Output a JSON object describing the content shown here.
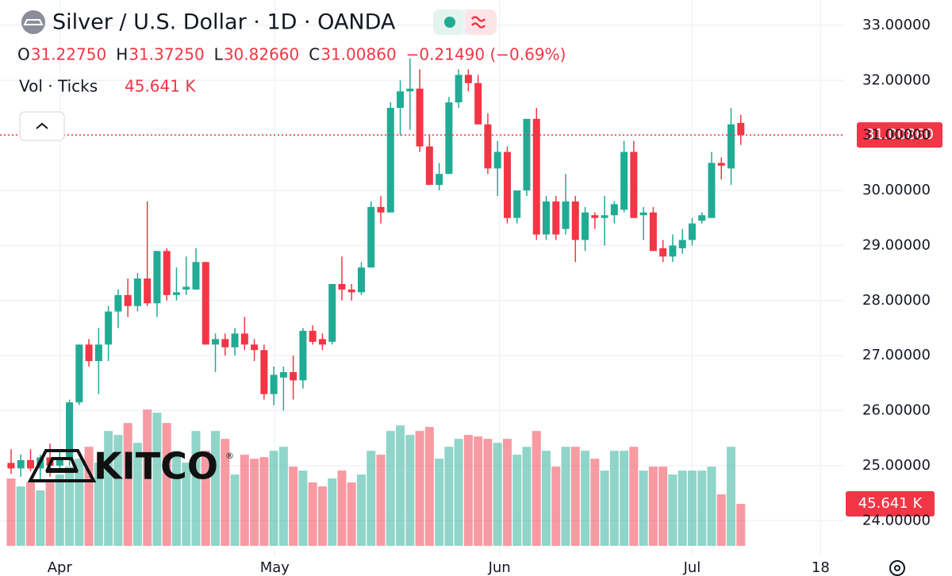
{
  "chart_data": {
    "type": "candlestick",
    "title": "Silver / U.S. Dollar · 1D · OANDA",
    "legend_items": [
      {
        "key": "O",
        "value": "31.22750"
      },
      {
        "key": "H",
        "value": "31.37250"
      },
      {
        "key": "L",
        "value": "30.82660"
      },
      {
        "key": "C",
        "value": "31.00860"
      }
    ],
    "change": "−0.21490 (−0.69%)",
    "volume_title": "Vol · Ticks",
    "volume_label": "45.641 K",
    "close_label": "31.00860",
    "logo": "KITCO",
    "logo_mark": "®",
    "up_color": "#22ab94",
    "down_color": "#f23645",
    "x": [
      0,
      1,
      2,
      3,
      4,
      5,
      6,
      7,
      8,
      9,
      10,
      11,
      12,
      13,
      14,
      15,
      16,
      17,
      18,
      19,
      20,
      21,
      22,
      23,
      24,
      25,
      26,
      27,
      28,
      29,
      30,
      31,
      32,
      33,
      34,
      35,
      36,
      37,
      38,
      39,
      40,
      41,
      42,
      43,
      44,
      45,
      46,
      47,
      48,
      49,
      50,
      51,
      52,
      53,
      54,
      55,
      56,
      57,
      58,
      59,
      60,
      61,
      62,
      63,
      64,
      65,
      66,
      67,
      68,
      69,
      70,
      71,
      72,
      73,
      74,
      75
    ],
    "open": [
      25.05,
      24.95,
      25.1,
      24.95,
      25.15,
      25.0,
      25.1,
      26.15,
      27.2,
      26.9,
      27.2,
      27.8,
      28.1,
      27.9,
      28.4,
      27.95,
      28.9,
      28.1,
      28.2,
      28.2,
      28.7,
      27.2,
      27.3,
      27.15,
      27.4,
      27.2,
      27.1,
      26.3,
      26.6,
      26.7,
      26.55,
      27.45,
      27.3,
      27.25,
      28.3,
      28.2,
      28.15,
      28.6,
      29.7,
      29.6,
      31.5,
      31.8,
      31.85,
      30.8,
      30.1,
      30.3,
      31.6,
      32.1,
      31.95,
      31.2,
      30.4,
      30.7,
      29.5,
      30.0,
      31.3,
      29.2,
      29.8,
      29.3,
      29.8,
      29.1,
      29.55,
      29.5,
      29.55,
      29.65,
      30.7,
      29.55,
      29.6,
      28.95,
      28.8,
      28.95,
      29.1,
      29.45,
      29.5,
      30.5,
      30.4,
      31.2275
    ],
    "high": [
      25.3,
      25.2,
      25.3,
      25.2,
      25.4,
      25.3,
      26.2,
      27.2,
      27.3,
      27.5,
      27.9,
      28.2,
      28.4,
      28.5,
      29.8,
      28.9,
      28.95,
      28.6,
      28.8,
      28.95,
      28.7,
      27.4,
      27.4,
      27.5,
      27.7,
      27.3,
      27.2,
      26.8,
      26.8,
      27.0,
      27.5,
      27.55,
      27.4,
      28.3,
      28.8,
      28.3,
      28.7,
      29.8,
      29.9,
      31.6,
      32.0,
      32.4,
      32.2,
      31.0,
      30.5,
      31.7,
      32.2,
      32.2,
      32.1,
      31.4,
      30.9,
      30.8,
      30.0,
      31.3,
      31.5,
      29.9,
      29.9,
      30.3,
      29.9,
      29.7,
      29.6,
      29.9,
      29.8,
      30.9,
      30.9,
      29.7,
      29.7,
      29.1,
      29.2,
      29.3,
      29.5,
      29.6,
      30.7,
      30.6,
      31.5,
      31.3725
    ],
    "low": [
      24.85,
      24.8,
      24.9,
      24.75,
      24.8,
      24.9,
      25.0,
      26.1,
      26.8,
      26.3,
      26.9,
      27.5,
      27.7,
      27.8,
      27.9,
      27.7,
      28.0,
      28.0,
      28.1,
      28.2,
      27.2,
      26.7,
      27.0,
      27.0,
      27.1,
      26.9,
      26.2,
      26.1,
      26.0,
      26.2,
      26.4,
      27.2,
      27.1,
      27.2,
      28.0,
      28.0,
      28.1,
      28.6,
      29.4,
      29.6,
      31.0,
      31.1,
      30.7,
      30.1,
      30.0,
      30.3,
      31.5,
      31.8,
      31.2,
      30.3,
      29.9,
      29.4,
      29.4,
      29.9,
      29.1,
      29.1,
      29.1,
      29.2,
      28.7,
      28.9,
      29.3,
      29.0,
      29.4,
      29.6,
      29.5,
      29.1,
      28.9,
      28.7,
      28.7,
      28.85,
      29.0,
      29.4,
      29.5,
      30.2,
      30.1,
      30.8266
    ],
    "close": [
      24.95,
      25.1,
      24.95,
      25.15,
      25.0,
      25.1,
      26.15,
      27.2,
      26.9,
      27.2,
      27.8,
      28.1,
      27.9,
      28.4,
      27.95,
      28.9,
      28.1,
      28.15,
      28.25,
      28.7,
      27.2,
      27.3,
      27.15,
      27.4,
      27.2,
      27.1,
      26.3,
      26.65,
      26.7,
      26.55,
      27.45,
      27.25,
      27.2,
      28.3,
      28.2,
      28.15,
      28.6,
      29.7,
      29.6,
      31.5,
      31.8,
      31.85,
      30.8,
      30.1,
      30.3,
      31.6,
      32.1,
      31.95,
      31.2,
      30.4,
      30.7,
      29.5,
      30.0,
      31.3,
      29.2,
      29.8,
      29.2,
      29.8,
      29.1,
      29.6,
      29.5,
      29.55,
      29.75,
      30.7,
      29.5,
      29.6,
      28.9,
      28.8,
      29.0,
      29.1,
      29.4,
      29.55,
      30.5,
      30.45,
      31.2,
      31.0086
    ],
    "volume": [
      73185,
      64575,
      68880,
      60270,
      68880,
      77490,
      86100,
      94710,
      107625,
      90405,
      124845,
      120540,
      133455,
      111930,
      148092,
      144648,
      133455,
      103320,
      90405,
      124845,
      103320,
      124845,
      116235,
      77490,
      99015,
      94710,
      96432,
      103320,
      107625,
      86100,
      81795,
      68880,
      64575,
      73185,
      81795,
      68880,
      77490,
      103320,
      99015,
      124845,
      130872,
      120540,
      124845,
      129150,
      94710,
      107625,
      116235,
      120540,
      118818,
      116235,
      111930,
      116235,
      99015,
      107625,
      124845,
      103320,
      86100,
      107625,
      107625,
      103320,
      94710,
      81795,
      103320,
      103320,
      107625,
      81795,
      86100,
      86100,
      77490,
      81795,
      81795,
      81795,
      86100,
      55965,
      107625,
      45641
    ],
    "xlim": [
      -1.14,
      85.7
    ],
    "xticks": [
      {
        "value": 5.0,
        "label": "Apr"
      },
      {
        "value": 27.1,
        "label": "May"
      },
      {
        "value": 50.2,
        "label": "Jun"
      },
      {
        "value": 70.0,
        "label": "Jul"
      },
      {
        "value": 83.2,
        "label": "18"
      }
    ],
    "ylim": [
      23.37,
      33.46
    ],
    "yticks": [
      {
        "value": 24,
        "label": "24.00000"
      },
      {
        "value": 25,
        "label": "25.00000"
      },
      {
        "value": 26,
        "label": "26.00000"
      },
      {
        "value": 27,
        "label": "27.00000"
      },
      {
        "value": 28,
        "label": "28.00000"
      },
      {
        "value": 29,
        "label": "29.00000"
      },
      {
        "value": 30,
        "label": "30.00000"
      },
      {
        "value": 31,
        "label": "31.00000"
      },
      {
        "value": 32,
        "label": "32.00000"
      },
      {
        "value": 33,
        "label": "33.00000"
      }
    ],
    "volume_lim": [
      0,
      200000
    ],
    "grid": true
  }
}
